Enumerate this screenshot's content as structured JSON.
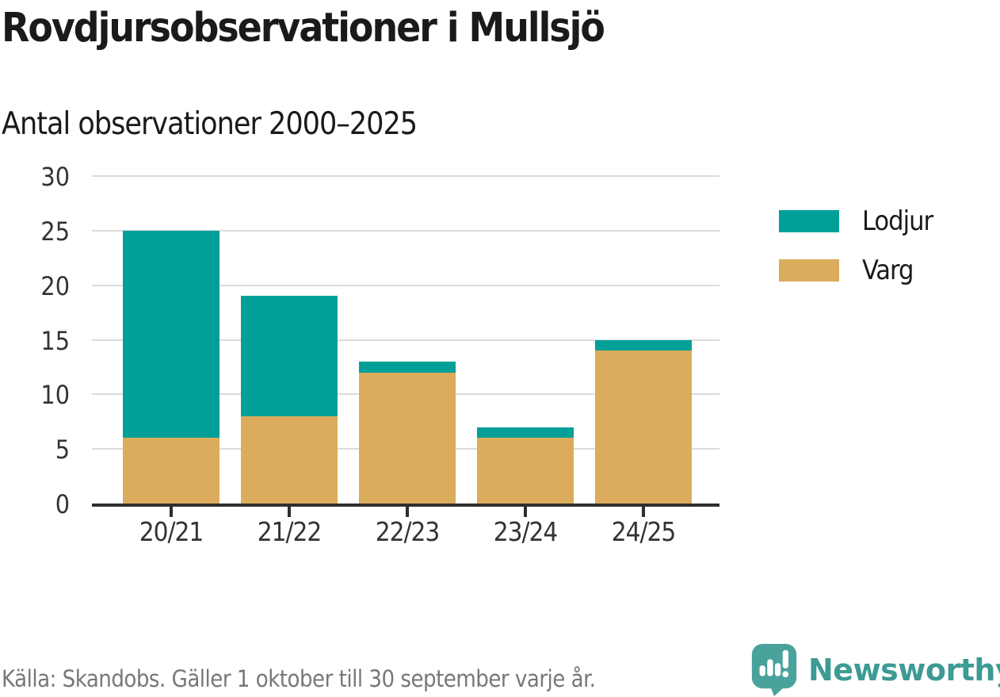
{
  "header": {
    "title": "Rovdjursobservationer i Mullsjö",
    "subtitle": "Antal observationer 2000–2025"
  },
  "chart_data": {
    "type": "bar",
    "stacked": true,
    "title": "Rovdjursobservationer i Mullsjö",
    "subtitle": "Antal observationer 2000–2025",
    "categories": [
      "20/21",
      "21/22",
      "22/23",
      "23/24",
      "24/25"
    ],
    "series": [
      {
        "name": "Lodjur",
        "color": "#00a099",
        "values": [
          19,
          11,
          1,
          1,
          1
        ]
      },
      {
        "name": "Varg",
        "color": "#dbac5c",
        "values": [
          6,
          8,
          12,
          6,
          14
        ]
      }
    ],
    "stack_order_bottom_to_top": [
      "Varg",
      "Lodjur"
    ],
    "totals": [
      25,
      19,
      13,
      7,
      15
    ],
    "xlabel": "",
    "ylabel": "",
    "ylim": [
      0,
      30
    ],
    "yticks": [
      0,
      5,
      10,
      15,
      20,
      25,
      30
    ],
    "grid": true,
    "legend_position": "right"
  },
  "colors": {
    "lodjur": "#00a099",
    "varg": "#dbac5c",
    "gridline": "#dbdbdb",
    "axis": "#2e2e2e",
    "text": "#1a1a1a",
    "muted_text": "#75787b",
    "brand_teal": "#3d9a94",
    "logo_teal": "#4aa29c"
  },
  "footer": {
    "source": "Källa: Skandobs. Gäller 1 oktober till 30 september varje år.",
    "brand": "Newsworthy"
  }
}
